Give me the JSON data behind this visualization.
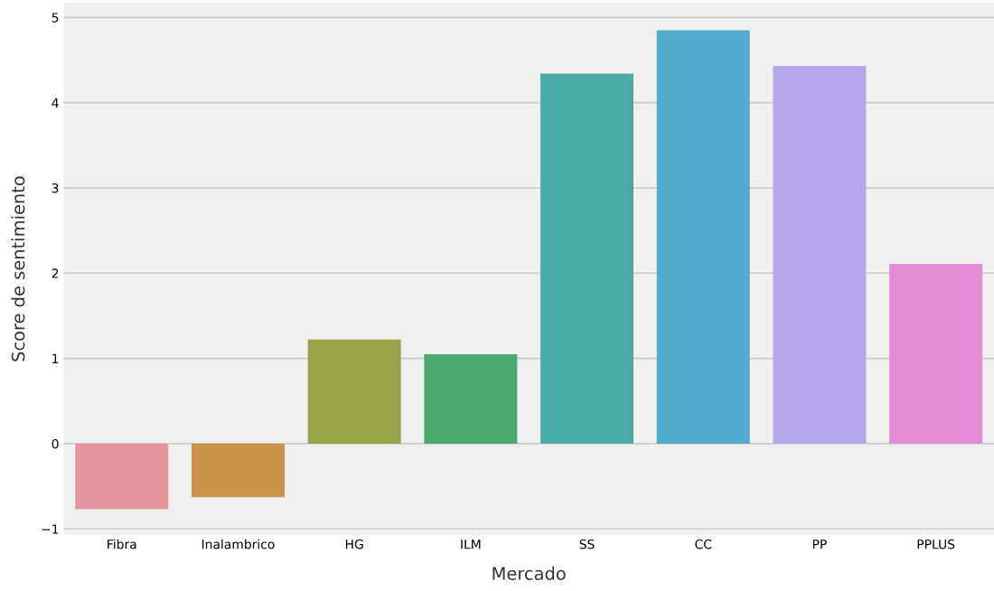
{
  "chart_data": {
    "type": "bar",
    "xlabel": "Mercado",
    "ylabel": "Score de sentimiento",
    "categories": [
      "Fibra",
      "Inalambrico",
      "HG",
      "ILM",
      "SS",
      "CC",
      "PP",
      "PPLUS"
    ],
    "values": [
      -0.77,
      -0.63,
      1.22,
      1.05,
      4.34,
      4.85,
      4.43,
      2.11
    ],
    "colors": [
      "#e8949f",
      "#c9944a",
      "#97a346",
      "#4aa96c",
      "#4aaaa5",
      "#52aacd",
      "#b6a6ea",
      "#e68bd6"
    ],
    "ylim": [
      -1.07,
      5.17
    ],
    "yticks": [
      {
        "value": -1,
        "label": "−1"
      },
      0,
      1,
      2,
      3,
      4,
      5
    ],
    "grid": "y"
  }
}
